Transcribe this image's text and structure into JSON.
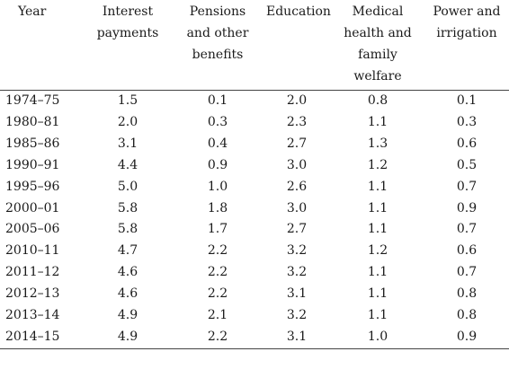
{
  "columns": [
    "Year",
    "Interest payments",
    "Pensions and other benefits",
    "Education",
    "Medical health and family welfare",
    "Power and irrigation"
  ],
  "header_lines": [
    [
      "Year"
    ],
    [
      "Interest",
      "payments"
    ],
    [
      "Pensions",
      "and other",
      "benefits"
    ],
    [
      "Education"
    ],
    [
      "Medical",
      "health and",
      "family",
      "welfare"
    ],
    [
      "Power and",
      "irrigation"
    ]
  ],
  "rows": [
    [
      "1974–75",
      "1.5",
      "0.1",
      "2.0",
      "0.8",
      "0.1"
    ],
    [
      "1980–81",
      "2.0",
      "0.3",
      "2.3",
      "1.1",
      "0.3"
    ],
    [
      "1985–86",
      "3.1",
      "0.4",
      "2.7",
      "1.3",
      "0.6"
    ],
    [
      "1990–91",
      "4.4",
      "0.9",
      "3.0",
      "1.2",
      "0.5"
    ],
    [
      "1995–96",
      "5.0",
      "1.0",
      "2.6",
      "1.1",
      "0.7"
    ],
    [
      "2000–01",
      "5.8",
      "1.8",
      "3.0",
      "1.1",
      "0.9"
    ],
    [
      "2005–06",
      "5.8",
      "1.7",
      "2.7",
      "1.1",
      "0.7"
    ],
    [
      "2010–11",
      "4.7",
      "2.2",
      "3.2",
      "1.2",
      "0.6"
    ],
    [
      "2011–12",
      "4.6",
      "2.2",
      "3.2",
      "1.1",
      "0.7"
    ],
    [
      "2012–13",
      "4.6",
      "2.2",
      "3.1",
      "1.1",
      "0.8"
    ],
    [
      "2013–14",
      "4.9",
      "2.1",
      "3.2",
      "1.1",
      "0.8"
    ],
    [
      "2014–15",
      "4.9",
      "2.2",
      "3.1",
      "1.0",
      "0.9"
    ]
  ]
}
